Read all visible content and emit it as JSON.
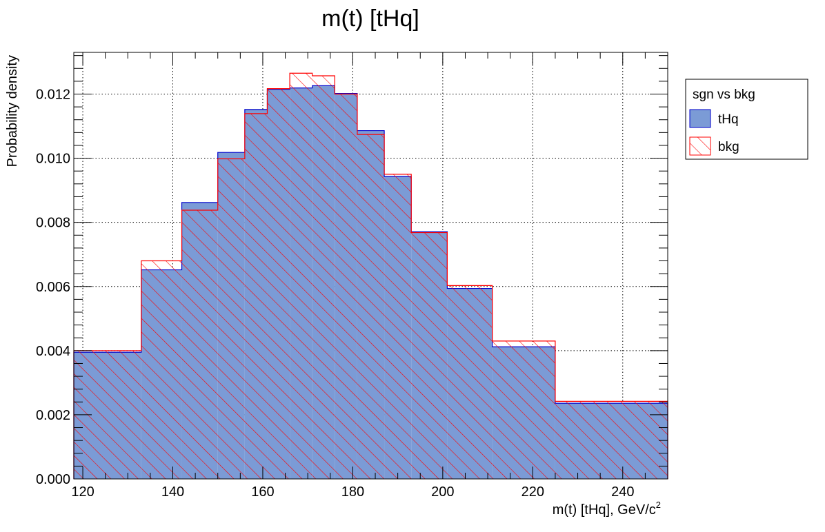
{
  "chart_data": {
    "type": "bar",
    "title": "m(t) [tHq]",
    "xlabel": "m(t) [tHq], GeV/c",
    "xlabel_superscript": "2",
    "ylabel": "Probability density",
    "xlim": [
      118,
      250
    ],
    "ylim": [
      0,
      0.0133
    ],
    "grid": true,
    "x_ticks": [
      120,
      140,
      160,
      180,
      200,
      220,
      240
    ],
    "y_ticks": [
      "0.000",
      "0.002",
      "0.004",
      "0.006",
      "0.008",
      "0.010",
      "0.012"
    ],
    "bin_edges": [
      118,
      133,
      142,
      150,
      156,
      161,
      166,
      171,
      176,
      181,
      187,
      193,
      201,
      211,
      225,
      250
    ],
    "series": [
      {
        "name": "tHq",
        "color": "#7b9bd6",
        "edge_color": "#0000cc",
        "style": "filled",
        "values": [
          0.00395,
          0.00652,
          0.00862,
          0.01018,
          0.01152,
          0.01215,
          0.01219,
          0.01226,
          0.01202,
          0.01086,
          0.00943,
          0.00771,
          0.00594,
          0.00412,
          0.00236
        ]
      },
      {
        "name": "bkg",
        "color": "#ff0000",
        "edge_color": "#ff0000",
        "style": "hatched",
        "values": [
          0.004,
          0.0068,
          0.00838,
          0.00998,
          0.01139,
          0.01217,
          0.01265,
          0.01257,
          0.012,
          0.01074,
          0.0095,
          0.00768,
          0.00603,
          0.0043,
          0.00242
        ]
      }
    ],
    "legend": {
      "title": "sgn vs bkg",
      "placement": "outside-top-right"
    }
  }
}
